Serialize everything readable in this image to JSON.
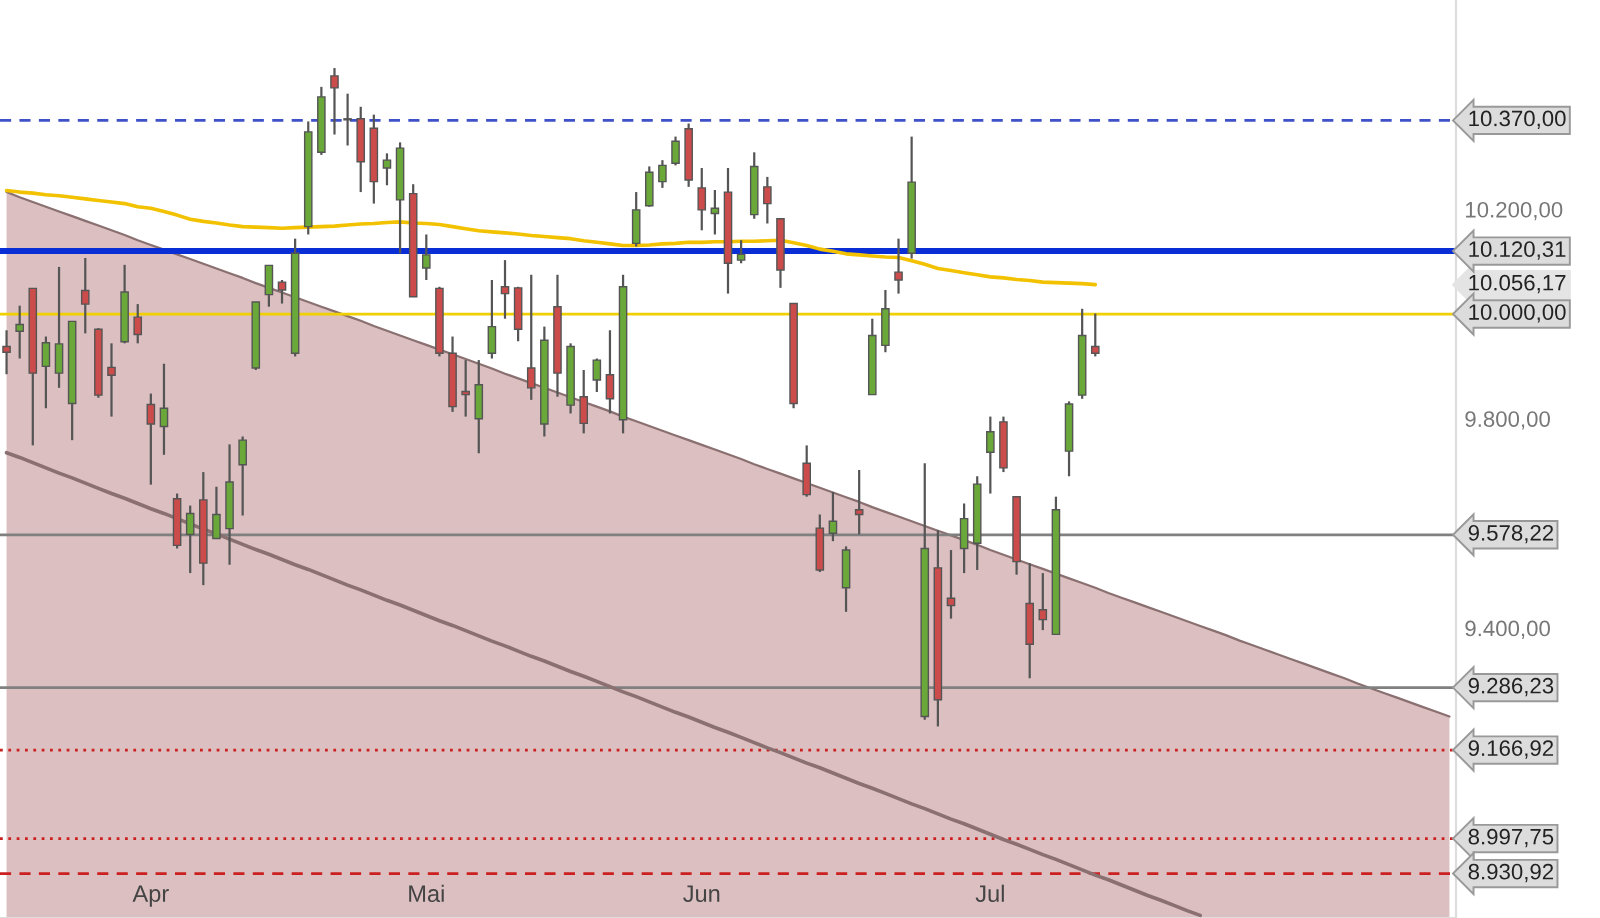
{
  "chart_data": {
    "type": "candlestick",
    "categories": [
      null,
      null,
      null,
      null,
      null,
      null,
      null,
      null,
      null,
      null,
      null,
      "Apr",
      null,
      null,
      null,
      null,
      null,
      null,
      null,
      null,
      null,
      null,
      null,
      null,
      null,
      null,
      null,
      null,
      null,
      null,
      null,
      null,
      "Mai",
      null,
      null,
      null,
      null,
      null,
      null,
      null,
      null,
      null,
      null,
      null,
      null,
      null,
      null,
      null,
      null,
      null,
      null,
      null,
      null,
      "Jun",
      null,
      null,
      null,
      null,
      null,
      null,
      null,
      null,
      null,
      null,
      null,
      null,
      null,
      null,
      null,
      null,
      null,
      null,
      null,
      null,
      null,
      "Jul",
      null,
      null,
      null,
      null,
      null,
      null,
      null,
      null,
      null,
      null,
      null,
      null,
      null,
      null,
      null,
      null,
      null,
      null,
      null,
      null,
      null,
      null,
      null,
      null,
      null,
      null,
      null,
      null,
      null,
      null,
      null,
      null,
      null,
      null,
      null
    ],
    "ohlc": [
      [
        9938,
        9969,
        9885,
        9927
      ],
      [
        9967,
        10016,
        9915,
        9980
      ],
      [
        10049,
        10049,
        9749,
        9887
      ],
      [
        9900,
        9957,
        9820,
        9945
      ],
      [
        9887,
        10090,
        9859,
        9943
      ],
      [
        9829,
        9986,
        9759,
        9986
      ],
      [
        10045,
        10107,
        9963,
        10019
      ],
      [
        9971,
        9973,
        9840,
        9845
      ],
      [
        9898,
        9944,
        9804,
        9883
      ],
      [
        9947,
        10094,
        9944,
        10042
      ],
      [
        9994,
        10019,
        9944,
        9961
      ],
      [
        9827,
        9848,
        9674,
        9790
      ],
      [
        9785,
        9905,
        9731,
        9820
      ],
      [
        9647,
        9657,
        9552,
        9558
      ],
      [
        9579,
        9634,
        9505,
        9619
      ],
      [
        9645,
        9698,
        9482,
        9524
      ],
      [
        9571,
        9670,
        9571,
        9617
      ],
      [
        9590,
        9751,
        9521,
        9679
      ],
      [
        9712,
        9766,
        9615,
        9759
      ],
      [
        9897,
        10023,
        9893,
        10023
      ],
      [
        10037,
        10093,
        10014,
        10093
      ],
      [
        10061,
        10065,
        10020,
        10046
      ],
      [
        9925,
        10144,
        9919,
        10116
      ],
      [
        10167,
        10368,
        10152,
        10348
      ],
      [
        10309,
        10434,
        10304,
        10415
      ],
      [
        10455,
        10470,
        10343,
        10432
      ],
      [
        10373,
        10421,
        10322,
        10371
      ],
      [
        10373,
        10396,
        10233,
        10291
      ],
      [
        10355,
        10381,
        10211,
        10253
      ],
      [
        10279,
        10307,
        10246,
        10294
      ],
      [
        10218,
        10328,
        10116,
        10317
      ],
      [
        10230,
        10248,
        10033,
        10033
      ],
      [
        10088,
        10152,
        10065,
        10113
      ],
      [
        10049,
        10052,
        9919,
        9925
      ],
      [
        9925,
        9957,
        9813,
        9823
      ],
      [
        9852,
        9912,
        9804,
        9846
      ],
      [
        9800,
        9912,
        9734,
        9865
      ],
      [
        9925,
        10065,
        9915,
        9976
      ],
      [
        10052,
        10103,
        9991,
        10039
      ],
      [
        10050,
        10052,
        9948,
        9971
      ],
      [
        9897,
        10075,
        9836,
        9859
      ],
      [
        9790,
        9976,
        9766,
        9950
      ],
      [
        10014,
        10075,
        9842,
        9887
      ],
      [
        9826,
        9944,
        9810,
        9938
      ],
      [
        9842,
        9893,
        9772,
        9791
      ],
      [
        9874,
        9915,
        9851,
        9912
      ],
      [
        9884,
        9969,
        9810,
        9838
      ],
      [
        9798,
        10075,
        9772,
        10052
      ],
      [
        10135,
        10233,
        10129,
        10199
      ],
      [
        10207,
        10282,
        10205,
        10271
      ],
      [
        10253,
        10294,
        10241,
        10284
      ],
      [
        10288,
        10339,
        10284,
        10330
      ],
      [
        10354,
        10364,
        10243,
        10256
      ],
      [
        10241,
        10279,
        10160,
        10199
      ],
      [
        10192,
        10237,
        10152,
        10202
      ],
      [
        10233,
        10279,
        10039,
        10097
      ],
      [
        10103,
        10141,
        10097,
        10114
      ],
      [
        10190,
        10309,
        10182,
        10282
      ],
      [
        10243,
        10262,
        10173,
        10211
      ],
      [
        10182,
        10182,
        10050,
        10084
      ],
      [
        10020,
        10020,
        9820,
        9829
      ],
      [
        9715,
        9749,
        9651,
        9655
      ],
      [
        9591,
        9617,
        9507,
        9511
      ],
      [
        9581,
        9660,
        9566,
        9604
      ],
      [
        9477,
        9556,
        9431,
        9549
      ],
      [
        9626,
        9702,
        9579,
        9617
      ],
      [
        9846,
        9991,
        9846,
        9959
      ],
      [
        9940,
        10046,
        9927,
        10010
      ],
      [
        10080,
        10144,
        10039,
        10065
      ],
      [
        10116,
        10339,
        10106,
        10252
      ],
      [
        9231,
        9715,
        9225,
        9552
      ],
      [
        9515,
        9587,
        9212,
        9263
      ],
      [
        9457,
        9549,
        9418,
        9443
      ],
      [
        9552,
        9638,
        9505,
        9609
      ],
      [
        9562,
        9690,
        9511,
        9675
      ],
      [
        9736,
        9804,
        9657,
        9775
      ],
      [
        9794,
        9804,
        9698,
        9706
      ],
      [
        9651,
        9651,
        9502,
        9527
      ],
      [
        9447,
        9524,
        9304,
        9369
      ],
      [
        9435,
        9505,
        9396,
        9416
      ],
      [
        9388,
        9651,
        9388,
        9626
      ],
      [
        9738,
        9833,
        9690,
        9828
      ],
      [
        9845,
        10010,
        9838,
        9959
      ],
      [
        9938,
        10001,
        9919,
        9925
      ],
      null,
      null,
      null,
      null,
      null,
      null,
      null,
      null,
      null,
      null,
      null,
      null,
      null,
      null,
      null,
      null,
      null,
      null,
      null,
      null,
      null,
      null,
      null,
      null,
      null,
      null,
      null
    ],
    "series": [
      {
        "type": "area",
        "color": "#dcbfc0",
        "values": [
          10233,
          10223,
          10214,
          10205,
          10196,
          10187,
          10178,
          10169,
          10160,
          10151,
          10141,
          10132,
          10123,
          10114,
          10105,
          10096,
          10087,
          10078,
          10069,
          10059,
          10050,
          10041,
          10032,
          10023,
          10014,
          10005,
          9996,
          9987,
          9977,
          9968,
          9959,
          9950,
          9941,
          9932,
          9923,
          9914,
          9905,
          9896,
          9886,
          9877,
          9868,
          9859,
          9850,
          9841,
          9832,
          9823,
          9814,
          9804,
          9795,
          9786,
          9777,
          9768,
          9759,
          9750,
          9741,
          9732,
          9723,
          9713,
          9704,
          9695,
          9686,
          9677,
          9668,
          9659,
          9650,
          9641,
          9631,
          9622,
          9613,
          9604,
          9595,
          9586,
          9577,
          9568,
          9559,
          9549,
          9540,
          9531,
          9522,
          9513,
          9504,
          9495,
          9486,
          9477,
          9467,
          9458,
          9449,
          9440,
          9431,
          9422,
          9413,
          9404,
          9395,
          9386,
          9376,
          9367,
          9358,
          9349,
          9340,
          9331,
          9322,
          9313,
          9304,
          9294,
          9285,
          9276,
          9267,
          9258,
          9249,
          9240,
          9231
        ]
      },
      {
        "type": "line",
        "color": "#8a7070",
        "values": [
          9735,
          9726,
          9716,
          9706,
          9696,
          9687,
          9677,
          9667,
          9657,
          9648,
          9638,
          9628,
          9619,
          9609,
          9599,
          9589,
          9580,
          9570,
          9560,
          9550,
          9541,
          9531,
          9521,
          9512,
          9502,
          9492,
          9482,
          9473,
          9463,
          9453,
          9444,
          9434,
          9424,
          9414,
          9405,
          9395,
          9385,
          9375,
          9366,
          9356,
          9346,
          9337,
          9327,
          9317,
          9308,
          9298,
          9288,
          9278,
          9269,
          9259,
          9249,
          9239,
          9230,
          9220,
          9210,
          9201,
          9191,
          9181,
          9171,
          9162,
          9152,
          9142,
          9133,
          9123,
          9113,
          9103,
          9094,
          9084,
          9074,
          9064,
          9055,
          9045,
          9035,
          9026,
          9016,
          9006,
          8996,
          8987,
          8977,
          8967,
          8958,
          8948,
          8938,
          8928,
          8919,
          8909,
          8899,
          8889,
          8880,
          8870,
          8860,
          8851,
          null,
          null,
          null,
          null,
          null,
          null,
          null,
          null,
          null,
          null,
          null,
          null,
          null,
          null,
          null,
          null,
          null,
          null,
          null
        ]
      },
      {
        "type": "line",
        "color": "#f2c200",
        "values": [
          10236,
          10233,
          10231,
          10228,
          10226,
          10223,
          10220,
          10217,
          10214,
          10211,
          10205,
          10202,
          10196,
          10189,
          10181,
          10177,
          10174,
          10170,
          10167,
          10166,
          10165,
          10164,
          10165,
          10166,
          10167,
          10168,
          10170,
          10172,
          10173,
          10175,
          10176,
          10174,
          10173,
          10171,
          10167,
          10163,
          10159,
          10157,
          10155,
          10153,
          10150,
          10148,
          10146,
          10144,
          10140,
          10137,
          10134,
          10131,
          10131,
          10132,
          10134,
          10135,
          10137,
          10137,
          10138,
          10138,
          10139,
          10139,
          10140,
          10141,
          10136,
          10131,
          10124,
          10120,
          10115,
          10113,
          10111,
          10109,
          10108,
          10102,
          10095,
          10087,
          10083,
          10079,
          10075,
          10071,
          10069,
          10066,
          10064,
          10061,
          10060,
          10059,
          10058,
          10056.17,
          null,
          null,
          null,
          null,
          null,
          null,
          null,
          null,
          null,
          null,
          null,
          null,
          null,
          null,
          null,
          null,
          null,
          null,
          null,
          null,
          null,
          null,
          null,
          null,
          null,
          null,
          null
        ]
      }
    ],
    "annotations": [
      "10.056,17"
    ],
    "ref_lines": [
      {
        "axis": "y",
        "value": 10370,
        "label": "10.370,00",
        "color": "#3f51c8",
        "line_style": "dashed"
      },
      {
        "axis": "y",
        "value": 10120.31,
        "label": "10.120,31",
        "color": "#0a2ed6",
        "line_style": "solid"
      },
      {
        "axis": "y",
        "value": 10000,
        "label": "10.000,00",
        "color": "#f0d000",
        "line_style": "solid"
      },
      {
        "axis": "y",
        "value": 9578.22,
        "label": "9.578,22",
        "color": "#808080",
        "line_style": "solid"
      },
      {
        "axis": "y",
        "value": 9286.23,
        "label": "9.286,23",
        "color": "#808080",
        "line_style": "solid"
      },
      {
        "axis": "y",
        "value": 9166.92,
        "label": "9.166,92",
        "color": "#cc2020",
        "line_style": "dotted"
      },
      {
        "axis": "y",
        "value": 8997.75,
        "label": "8.997,75",
        "color": "#cc2020",
        "line_style": "dotted"
      },
      {
        "axis": "y",
        "value": 8930.92,
        "label": "8.930,92",
        "color": "#cc2020",
        "line_style": "dashed"
      }
    ],
    "ylim": [
      8846,
      10600
    ],
    "yticks": [
      {
        "value": 9400,
        "label": "9.400,00"
      },
      {
        "value": 9800,
        "label": "9.800,00"
      },
      {
        "value": 10200,
        "label": "10.200,00"
      }
    ],
    "grid": false,
    "legend": false
  }
}
